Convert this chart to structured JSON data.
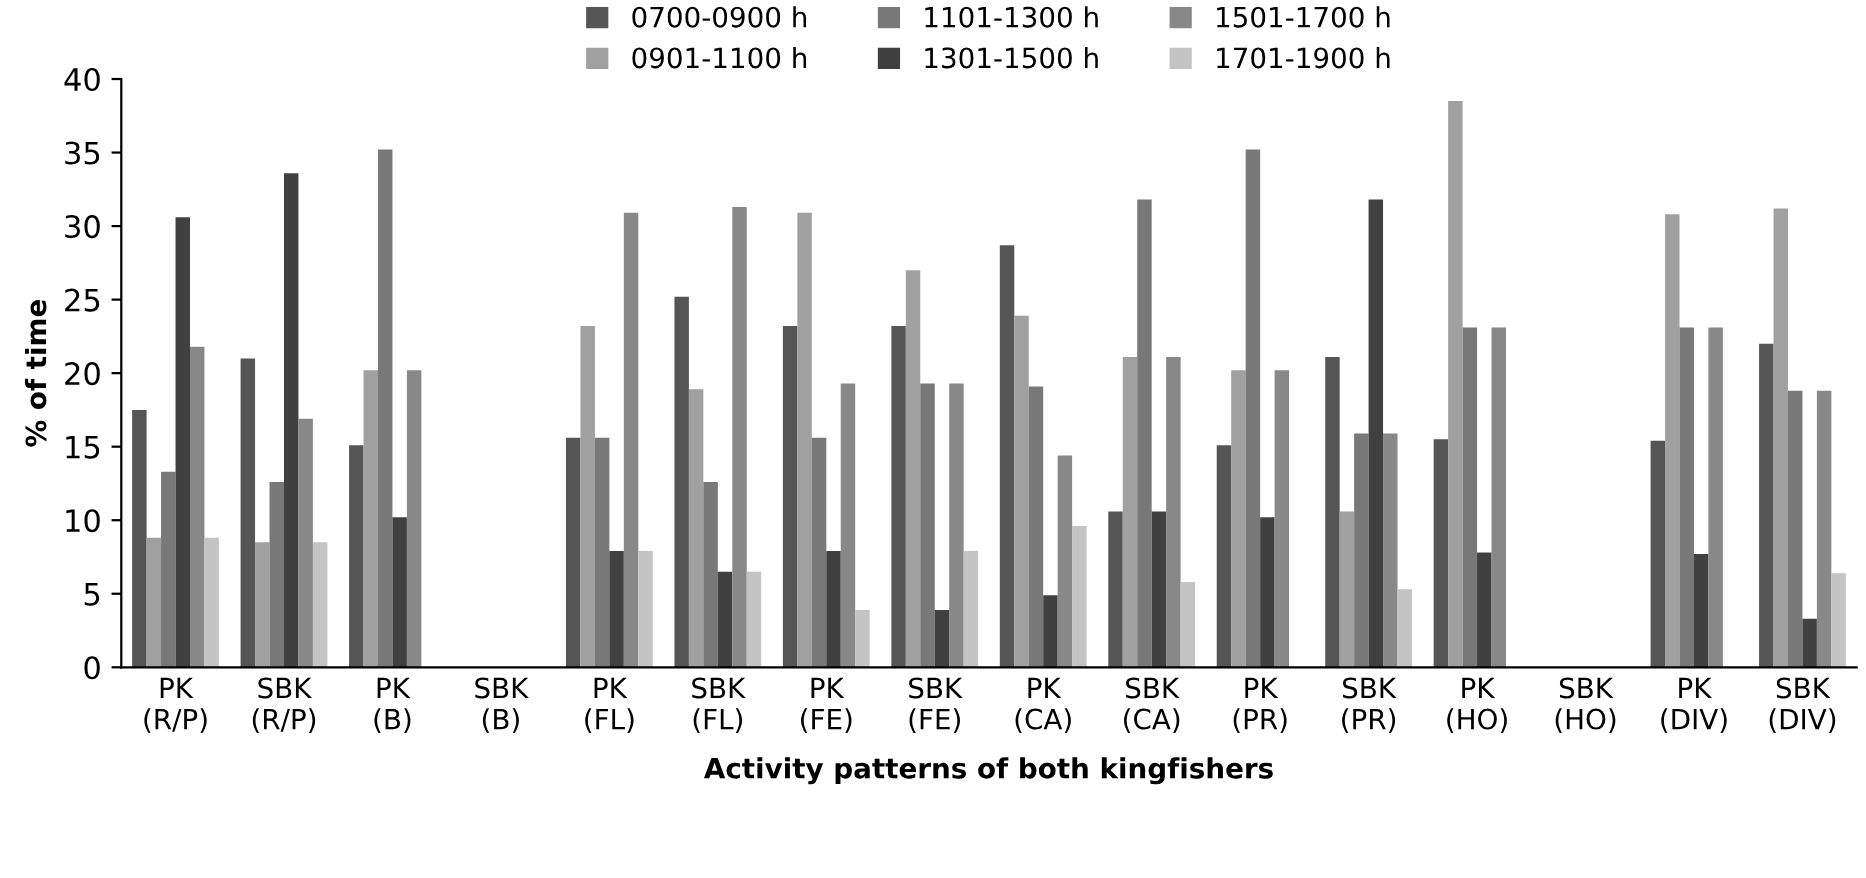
{
  "chart_data": {
    "type": "bar",
    "xlabel": "Activity patterns of both kingfishers",
    "ylabel": "% of time",
    "categories": [
      "PK\n(R/P)",
      "SBK\n(R/P)",
      "PK\n(B)",
      "SBK\n(B)",
      "PK\n(FL)",
      "SBK\n(FL)",
      "PK\n(FE)",
      "SBK\n(FE)",
      "PK\n(CA)",
      "SBK\n(CA)",
      "PK\n(PR)",
      "SBK\n(PR)",
      "PK\n(HO)",
      "SBK\n(HO)",
      "PK\n(DIV)",
      "SBK\n(DIV)"
    ],
    "series": [
      {
        "name": "0700-0900 h",
        "color": "#555555",
        "values": [
          17.5,
          21,
          15.1,
          0,
          15.6,
          25.2,
          23.2,
          23.2,
          28.7,
          10.6,
          15.1,
          21.1,
          15.5,
          0,
          15.4,
          22
        ]
      },
      {
        "name": "0901-1100 h",
        "color": "#a0a0a0",
        "values": [
          8.8,
          8.5,
          20.2,
          0,
          23.2,
          18.9,
          30.9,
          27.0,
          23.9,
          21.1,
          20.2,
          10.6,
          38.5,
          0,
          30.8,
          31.2
        ]
      },
      {
        "name": "1101-1300 h",
        "color": "#787878",
        "values": [
          13.3,
          12.6,
          35.2,
          0,
          15.6,
          12.6,
          15.6,
          19.3,
          19.1,
          31.8,
          35.2,
          15.9,
          23.1,
          0,
          23.1,
          18.8
        ]
      },
      {
        "name": "1301-1500 h",
        "color": "#404040",
        "values": [
          30.6,
          33.6,
          10.2,
          0,
          7.9,
          6.5,
          7.9,
          3.9,
          4.9,
          10.6,
          10.2,
          31.8,
          7.8,
          0,
          7.7,
          3.3
        ]
      },
      {
        "name": "1501-1700 h",
        "color": "#888888",
        "values": [
          21.8,
          16.9,
          20.2,
          0,
          30.9,
          31.3,
          19.3,
          19.3,
          14.4,
          21.1,
          20.2,
          15.9,
          23.1,
          0,
          23.1,
          18.8
        ]
      },
      {
        "name": "1701-1900 h",
        "color": "#c4c4c4",
        "values": [
          8.8,
          8.5,
          0,
          0,
          7.9,
          6.5,
          3.9,
          7.9,
          9.6,
          5.8,
          0,
          5.3,
          0,
          0,
          0,
          6.4
        ]
      }
    ],
    "ylim": [
      0,
      40
    ],
    "yticks": [
      0,
      5,
      10,
      15,
      20,
      25,
      30,
      35,
      40
    ],
    "grid": false,
    "legend": "top"
  }
}
